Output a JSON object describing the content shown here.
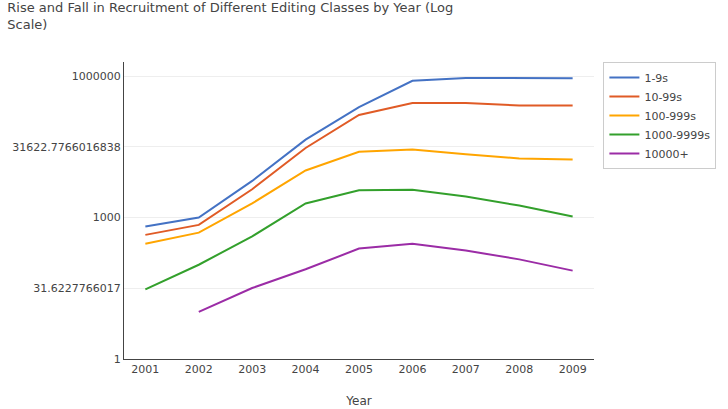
{
  "chart_data": {
    "type": "line",
    "title": "Rise and Fall in Recruitment of Different Editing Classes by Year (Log\nScale)",
    "x_label": "Year",
    "x": [
      2001,
      2002,
      2003,
      2004,
      2005,
      2006,
      2007,
      2008,
      2009
    ],
    "series": [
      {
        "name": "1-9s",
        "color": "#4472C4",
        "values": [
          650,
          1000,
          6000,
          45000,
          220000,
          800000,
          920000,
          920000,
          900000
        ]
      },
      {
        "name": "10-99s",
        "color": "#E05B26",
        "values": [
          430,
          700,
          4000,
          30000,
          150000,
          270000,
          270000,
          240000,
          240000
        ]
      },
      {
        "name": "100-999s",
        "color": "#FFA500",
        "values": [
          280,
          480,
          2000,
          10000,
          25000,
          28000,
          22000,
          18000,
          17000
        ]
      },
      {
        "name": "1000-9999s",
        "color": "#33A02C",
        "values": [
          30,
          100,
          400,
          2000,
          3800,
          3900,
          2800,
          1800,
          1050
        ]
      },
      {
        "name": "10000+",
        "color": "#9B2CA6",
        "values": [
          null,
          10,
          32,
          80,
          220,
          280,
          200,
          130,
          75
        ]
      }
    ],
    "log": "y",
    "xlim": [
      2000.6,
      2009.4
    ],
    "xticks": [
      2001,
      2002,
      2003,
      2004,
      2005,
      2006,
      2007,
      2008,
      2009
    ],
    "ylim": [
      1,
      2000000
    ],
    "yticks": [
      1,
      31.6227766017,
      1000,
      31622.7766016838,
      1000000
    ],
    "grid": "y",
    "legend": "right"
  }
}
